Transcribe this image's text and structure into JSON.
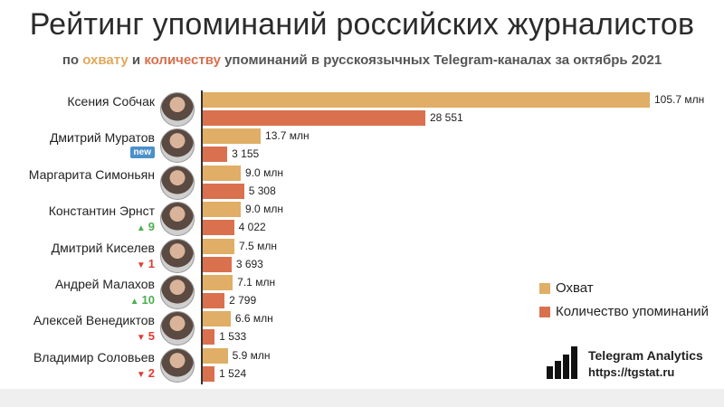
{
  "title": "Рейтинг упоминаний российских журналистов",
  "subtitle": {
    "prefix": "по ",
    "reach_word": "охвату",
    "and": " и ",
    "count_word": "количеству",
    "suffix": " упоминаний в русскоязычных Telegram-каналах за октябрь 2021"
  },
  "colors": {
    "reach": "#e0ae66",
    "count": "#d9714f",
    "up": "#4caf50",
    "down": "#e03c31",
    "new_badge": "#4a90c9"
  },
  "legend": [
    {
      "label": "Охват",
      "color": "#e0ae66"
    },
    {
      "label": "Количество упоминаний",
      "color": "#d9714f"
    }
  ],
  "brand": {
    "name": "Telegram Analytics",
    "url": "https://tgstat.ru",
    "logo_icon": "bar-chart-logo-icon"
  },
  "chart_data": {
    "type": "bar",
    "orientation": "horizontal",
    "categories": [
      "Ксения Собчак",
      "Дмитрий Муратов",
      "Маргарита Симоньян",
      "Константин Эрнст",
      "Дмитрий Киселев",
      "Андрей Малахов",
      "Алексей Венедиктов",
      "Владимир Соловьев"
    ],
    "series": [
      {
        "name": "Охват",
        "values": [
          105.7,
          13.7,
          9.0,
          9.0,
          7.5,
          7.1,
          6.6,
          5.9
        ],
        "labels": [
          "105.7 млн",
          "13.7 млн",
          "9.0 млн",
          "9.0 млн",
          "7.5 млн",
          "7.1 млн",
          "6.6 млн",
          "5.9 млн"
        ]
      },
      {
        "name": "Количество упоминаний",
        "values": [
          28551,
          3155,
          5308,
          4022,
          3693,
          2799,
          1533,
          1524
        ],
        "labels": [
          "28 551",
          "3 155",
          "5 308",
          "4 022",
          "3 693",
          "2 799",
          "1 533",
          "1 524"
        ]
      }
    ],
    "rank_change": [
      {
        "type": "none",
        "text": ""
      },
      {
        "type": "new",
        "text": "new"
      },
      {
        "type": "none",
        "text": ""
      },
      {
        "type": "up",
        "text": "9"
      },
      {
        "type": "down",
        "text": "1"
      },
      {
        "type": "up",
        "text": "10"
      },
      {
        "type": "down",
        "text": "5"
      },
      {
        "type": "down",
        "text": "2"
      }
    ],
    "legend_position": "bottom-right",
    "grid": false
  }
}
